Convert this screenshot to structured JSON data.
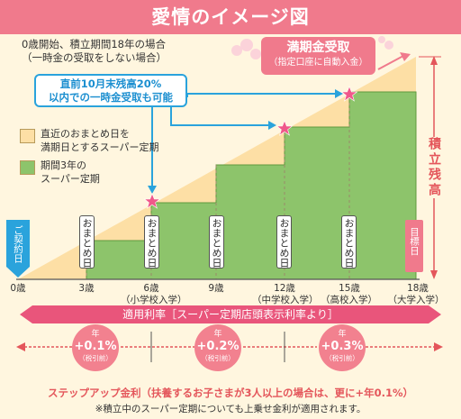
{
  "header": {
    "title": "愛情のイメージ図"
  },
  "notes": {
    "line1": "0歳開始、積立期間18年の場合",
    "line2": "（一時金の受取をしない場合）"
  },
  "callout": {
    "line1": "直前10月末残高20%",
    "line2": "以内での一時金受取も可能"
  },
  "maturity": {
    "title": "満期金受取",
    "sub": "（指定口座に自動入金）"
  },
  "legend": {
    "item1_line1": "直近のおまとめ日を",
    "item1_line2": "満期日とするスーパー定期",
    "item2_line1": "期間3年の",
    "item2_line2": "スーパー定期"
  },
  "colors": {
    "accent": "#f07a8c",
    "blue": "#2aa3dc",
    "green": "#8dc46b",
    "cream": "#fddfa5"
  },
  "side_label": "積立残高",
  "markers": {
    "contract": "ご契約日",
    "omatome": "おまとめ日",
    "goal": "目標日"
  },
  "ages": [
    "0歳",
    "3歳",
    "6歳",
    "9歳",
    "12歳",
    "15歳",
    "18歳"
  ],
  "age_subs": {
    "6": "（小学校入学）",
    "12": "（中学校入学）",
    "15": "（高校入学）",
    "18": "（大学入学）"
  },
  "rate_bar": "適用利率［スーパー定期店頭表示利率より］",
  "rates": [
    {
      "nen": "年",
      "value": "+0.1%",
      "sub": "（税引前）"
    },
    {
      "nen": "年",
      "value": "+0.2%",
      "sub": "（税引前）"
    },
    {
      "nen": "年",
      "value": "+0.3%",
      "sub": "（税引前）"
    }
  ],
  "footer": {
    "main": "ステップアップ金利（扶養するお子さまが3人以上の場合は、更に+年0.1%）",
    "sub": "※積立中のスーパー定期についても上乗せ金利が適用されます。"
  }
}
